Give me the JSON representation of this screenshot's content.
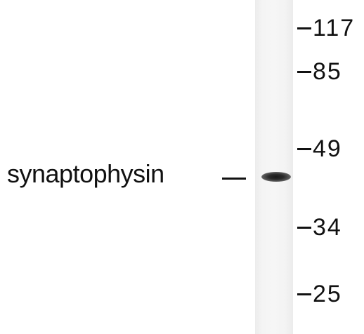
{
  "blot": {
    "protein_label": "synaptophysin",
    "markers": [
      {
        "label": "117"
      },
      {
        "label": "85"
      },
      {
        "label": "49"
      },
      {
        "label": "34"
      },
      {
        "label": "25"
      }
    ]
  }
}
